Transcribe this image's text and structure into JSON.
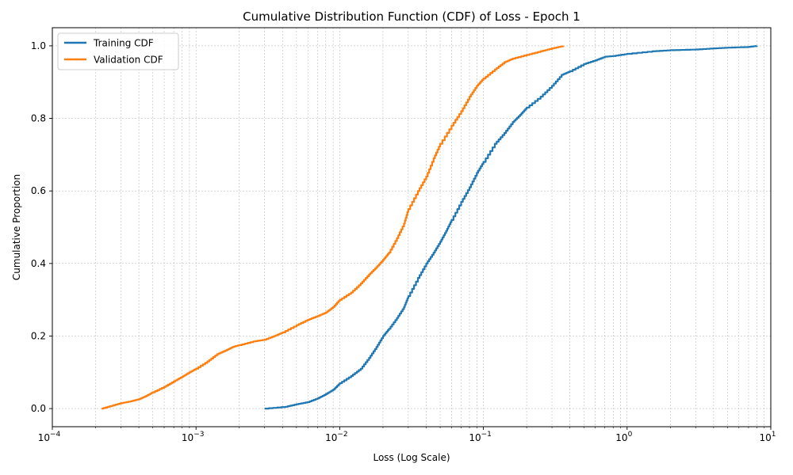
{
  "chart_data": {
    "type": "line",
    "title": "Cumulative Distribution Function (CDF) of Loss - Epoch 1",
    "xlabel": "Loss (Log Scale)",
    "ylabel": "Cumulative Proportion",
    "xscale": "log",
    "xlim": [
      0.0001,
      10
    ],
    "ylim": [
      -0.05,
      1.05
    ],
    "x_tick_labels": [
      {
        "base": "10",
        "exp": "−4"
      },
      {
        "base": "10",
        "exp": "−3"
      },
      {
        "base": "10",
        "exp": "−2"
      },
      {
        "base": "10",
        "exp": "−1"
      },
      {
        "base": "10",
        "exp": "0"
      },
      {
        "base": "10",
        "exp": "1"
      }
    ],
    "y_ticks": [
      "0.0",
      "0.2",
      "0.4",
      "0.6",
      "0.8",
      "1.0"
    ],
    "grid": true,
    "legend_position": "top-left",
    "series": [
      {
        "name": "Training CDF",
        "color": "#1f77b4",
        "x": [
          0.003,
          0.0042,
          0.005,
          0.006,
          0.007,
          0.008,
          0.009,
          0.01,
          0.012,
          0.014,
          0.016,
          0.018,
          0.02,
          0.022,
          0.025,
          0.028,
          0.03,
          0.035,
          0.04,
          0.045,
          0.05,
          0.055,
          0.06,
          0.07,
          0.08,
          0.09,
          0.1,
          0.12,
          0.14,
          0.16,
          0.18,
          0.2,
          0.25,
          0.3,
          0.35,
          0.4,
          0.5,
          0.6,
          0.7,
          0.8,
          1.0,
          1.5,
          2.0,
          3.0,
          4.0,
          5.0,
          7.0,
          8.0
        ],
        "y": [
          0.0,
          0.005,
          0.012,
          0.018,
          0.028,
          0.04,
          0.052,
          0.07,
          0.09,
          0.11,
          0.14,
          0.17,
          0.2,
          0.22,
          0.25,
          0.28,
          0.31,
          0.36,
          0.4,
          0.43,
          0.46,
          0.49,
          0.52,
          0.57,
          0.61,
          0.65,
          0.68,
          0.73,
          0.76,
          0.79,
          0.81,
          0.83,
          0.86,
          0.89,
          0.92,
          0.93,
          0.95,
          0.96,
          0.97,
          0.972,
          0.978,
          0.985,
          0.988,
          0.99,
          0.993,
          0.995,
          0.997,
          1.0
        ]
      },
      {
        "name": "Validation CDF",
        "color": "#ff7f0e",
        "x": [
          0.00022,
          0.00026,
          0.0003,
          0.00035,
          0.0004,
          0.00045,
          0.0005,
          0.0006,
          0.0007,
          0.0008,
          0.0009,
          0.001,
          0.0012,
          0.0014,
          0.0016,
          0.0018,
          0.002,
          0.0025,
          0.003,
          0.0035,
          0.004,
          0.005,
          0.006,
          0.007,
          0.008,
          0.009,
          0.01,
          0.012,
          0.014,
          0.016,
          0.018,
          0.02,
          0.022,
          0.025,
          0.028,
          0.03,
          0.035,
          0.04,
          0.045,
          0.05,
          0.06,
          0.07,
          0.08,
          0.09,
          0.1,
          0.12,
          0.14,
          0.16,
          0.2,
          0.25,
          0.3,
          0.36
        ],
        "y": [
          0.0,
          0.008,
          0.015,
          0.02,
          0.026,
          0.035,
          0.045,
          0.06,
          0.075,
          0.088,
          0.1,
          0.11,
          0.13,
          0.15,
          0.16,
          0.17,
          0.175,
          0.185,
          0.19,
          0.2,
          0.21,
          0.23,
          0.245,
          0.255,
          0.265,
          0.28,
          0.3,
          0.32,
          0.345,
          0.37,
          0.39,
          0.41,
          0.43,
          0.47,
          0.51,
          0.55,
          0.6,
          0.64,
          0.69,
          0.73,
          0.78,
          0.82,
          0.86,
          0.89,
          0.91,
          0.935,
          0.955,
          0.965,
          0.975,
          0.985,
          0.993,
          1.0
        ]
      }
    ]
  }
}
